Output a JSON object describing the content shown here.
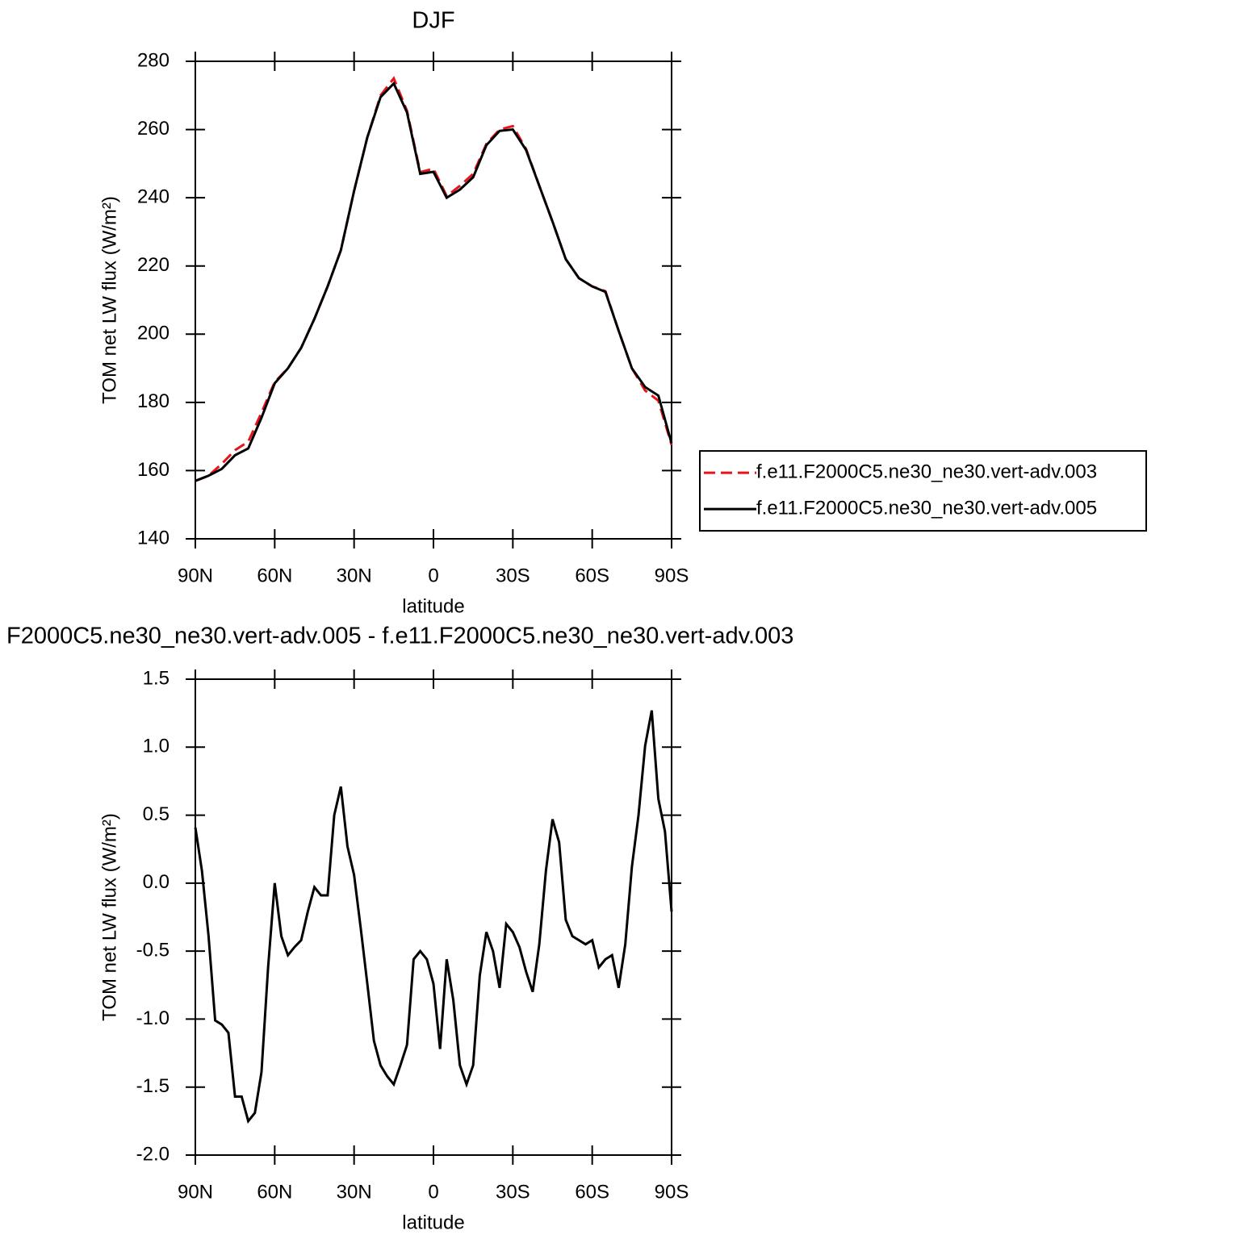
{
  "chart_data": [
    {
      "type": "line",
      "title": "DJF",
      "xlabel": "latitude",
      "ylabel": "TOM net LW flux (W/m²)",
      "x": [
        90,
        85,
        80,
        75,
        70,
        65,
        60,
        55,
        50,
        45,
        40,
        35,
        30,
        25,
        20,
        15,
        10,
        5,
        0,
        -5,
        -10,
        -15,
        -20,
        -25,
        -30,
        -35,
        -40,
        -45,
        -50,
        -55,
        -60,
        -65,
        -70,
        -75,
        -80,
        -85,
        -90
      ],
      "xlim": [
        90,
        -90
      ],
      "xticks": [
        {
          "value": 90,
          "label": "90N"
        },
        {
          "value": 60,
          "label": "60N"
        },
        {
          "value": 30,
          "label": "30N"
        },
        0,
        {
          "value": -30,
          "label": "30S"
        },
        {
          "value": -60,
          "label": "60S"
        },
        {
          "value": -90,
          "label": "90S"
        }
      ],
      "ylim": [
        140,
        280
      ],
      "yticks": [
        140,
        160,
        180,
        200,
        220,
        240,
        260,
        280
      ],
      "legend": "right",
      "series": [
        {
          "name": "f.e11.F2000C5.ne30_ne30.vert-adv.003",
          "color": "#e8141c",
          "line_style": "dashed",
          "values": [
            157,
            158.5,
            162,
            166,
            168.5,
            177,
            186,
            190,
            196,
            204.5,
            214,
            224.6,
            242,
            257.7,
            270,
            275,
            265.5,
            247.5,
            248.5,
            240.5,
            243.5,
            247,
            255.8,
            260,
            261,
            254.3,
            243.5,
            233,
            222,
            216.4,
            214,
            212.6,
            201,
            190,
            183.5,
            180.5,
            167.5
          ]
        },
        {
          "name": "f.e11.F2000C5.ne30_ne30.vert-adv.005",
          "color": "#000000",
          "line_style": "solid",
          "values": [
            157,
            158.5,
            160.5,
            164.5,
            166.5,
            175.5,
            185.6,
            190,
            196,
            204.5,
            214,
            224.6,
            242,
            257.7,
            269.5,
            273.5,
            265,
            247,
            247.6,
            240,
            242.4,
            246,
            255.4,
            259.6,
            260,
            254,
            243.5,
            233,
            222,
            216.4,
            214,
            212.4,
            201,
            190,
            184.5,
            182,
            168
          ]
        }
      ]
    },
    {
      "type": "line",
      "title": "F2000C5.ne30_ne30.vert-adv.005 - f.e11.F2000C5.ne30_ne30.vert-adv.003",
      "xlabel": "latitude",
      "ylabel": "TOM net LW flux (W/m²)",
      "x": [
        90,
        87.5,
        85,
        82.5,
        80,
        77.5,
        75,
        72.5,
        70,
        67.5,
        65,
        62.5,
        60,
        57.5,
        55,
        52.5,
        50,
        47.5,
        45,
        42.5,
        40,
        37.5,
        35,
        32.5,
        30,
        27.5,
        25,
        22.5,
        20,
        17.5,
        15,
        12.5,
        10,
        7.5,
        5,
        2.5,
        0,
        -2.5,
        -5,
        -7.5,
        -10,
        -12.5,
        -15,
        -17.5,
        -20,
        -22.5,
        -25,
        -27.5,
        -30,
        -32.5,
        -35,
        -37.5,
        -40,
        -42.5,
        -45,
        -47.5,
        -50,
        -52.5,
        -55,
        -57.5,
        -60,
        -62.5,
        -65,
        -67.5,
        -70,
        -72.5,
        -75,
        -77.5,
        -80,
        -82.5,
        -85,
        -87.5,
        -90
      ],
      "xlim": [
        90,
        -90
      ],
      "xticks": [
        {
          "value": 90,
          "label": "90N"
        },
        {
          "value": 60,
          "label": "60N"
        },
        {
          "value": 30,
          "label": "30N"
        },
        0,
        {
          "value": -30,
          "label": "30S"
        },
        {
          "value": -60,
          "label": "60S"
        },
        {
          "value": -90,
          "label": "90S"
        }
      ],
      "ylim": [
        -2,
        1.5
      ],
      "yticks": [
        {
          "value": -2,
          "label": "-2.0"
        },
        -1.5,
        {
          "value": -1,
          "label": "-1.0"
        },
        -0.5,
        {
          "value": 0,
          "label": "0.0"
        },
        0.5,
        {
          "value": 1,
          "label": "1.0"
        },
        1.5
      ],
      "series": [
        {
          "color": "#000000",
          "line_style": "solid",
          "values": [
            0.41,
            0.09,
            -0.39,
            -1.01,
            -1.04,
            -1.1,
            -1.57,
            -1.57,
            -1.75,
            -1.69,
            -1.39,
            -0.62,
            0.0,
            -0.39,
            -0.53,
            -0.47,
            -0.42,
            -0.21,
            -0.03,
            -0.09,
            -0.09,
            0.5,
            0.71,
            0.27,
            0.06,
            -0.33,
            -0.74,
            -1.16,
            -1.34,
            -1.42,
            -1.48,
            -1.34,
            -1.19,
            -0.56,
            -0.5,
            -0.56,
            -0.74,
            -1.22,
            -0.56,
            -0.86,
            -1.34,
            -1.48,
            -1.34,
            -0.68,
            -0.36,
            -0.5,
            -0.77,
            -0.3,
            -0.36,
            -0.47,
            -0.65,
            -0.8,
            -0.45,
            0.09,
            0.47,
            0.3,
            -0.27,
            -0.39,
            -0.42,
            -0.45,
            -0.42,
            -0.62,
            -0.56,
            -0.53,
            -0.77,
            -0.45,
            0.12,
            0.5,
            1.01,
            1.27,
            0.62,
            0.38,
            -0.21
          ]
        }
      ]
    }
  ]
}
